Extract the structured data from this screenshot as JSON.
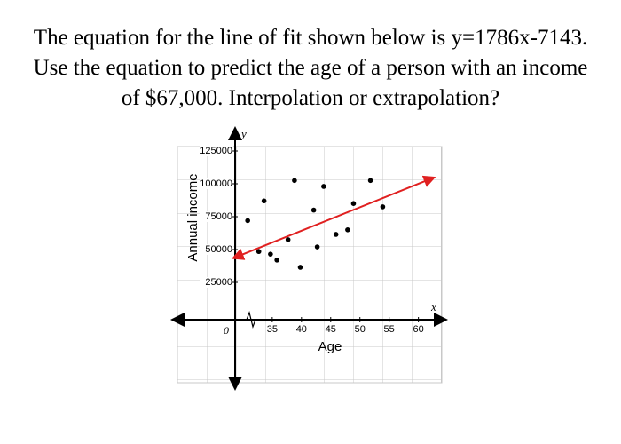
{
  "chart_data": {
    "type": "scatter",
    "title_lines": [
      "The equation for the line of fit shown below is y=1786x-7143.",
      "Use the equation to predict the age of a person with an income",
      "of $67,000. Interpolation or extrapolation?"
    ],
    "x_label": "Age",
    "y_label": "Annual income",
    "x_axis_letter": "x",
    "y_axis_letter": "y",
    "origin_label": "0",
    "xlim": [
      20,
      64
    ],
    "ylim": [
      -50000,
      130000
    ],
    "xticks": [
      35,
      40,
      45,
      50,
      55,
      60
    ],
    "yticks": [
      25000,
      50000,
      75000,
      100000,
      125000
    ],
    "x": [
      30.8,
      32.7,
      33.6,
      34.7,
      35.8,
      37.7,
      38.8,
      39.8,
      42.1,
      42.7,
      43.8,
      45.9,
      47.9,
      48.9,
      51.8,
      53.9
    ],
    "values": [
      72000,
      48500,
      87000,
      46500,
      42000,
      57500,
      102500,
      36500,
      80000,
      52000,
      98000,
      61500,
      65000,
      85000,
      102500,
      82500
    ],
    "color": "#000000",
    "fit_line": {
      "slope": 1786,
      "intercept": -7143,
      "x": [
        29,
        62
      ],
      "color": "#e02020"
    },
    "grid": true
  }
}
